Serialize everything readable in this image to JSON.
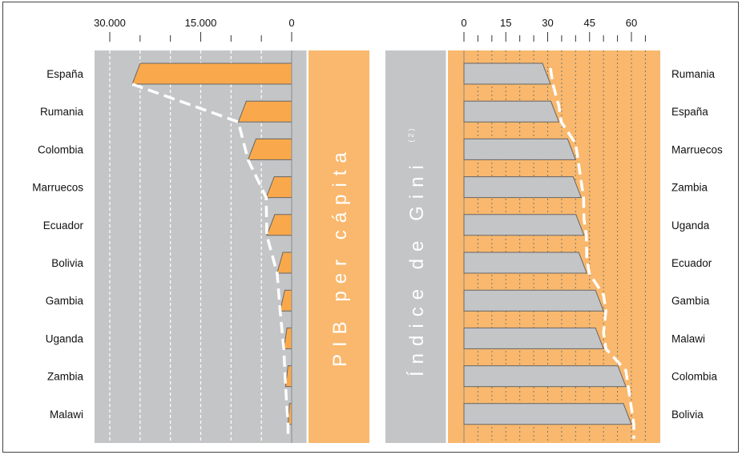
{
  "chart_data": [
    {
      "type": "bar",
      "orientation": "horizontal",
      "title": "PIB per cápita",
      "x_direction": "reversed",
      "xlim": [
        0,
        35000
      ],
      "x_ticks": [
        30000,
        15000,
        0
      ],
      "x_tick_labels": [
        "30.000",
        "15.000",
        "0"
      ],
      "categories": [
        "España",
        "Rumania",
        "Colombia",
        "Marruecos",
        "Ecuador",
        "Bolivia",
        "Gambia",
        "Uganda",
        "Zambia",
        "Malawi"
      ],
      "values": [
        26300,
        8800,
        7200,
        4200,
        4100,
        2400,
        1900,
        1300,
        1000,
        600
      ],
      "grid": true,
      "colors": {
        "bar": "#f9a94b",
        "panel": "#c4c5c7",
        "title_band": "#f9b86d",
        "outline": "#666666",
        "trend_line": "#ffffff"
      }
    },
    {
      "type": "bar",
      "orientation": "horizontal",
      "title": "Índice de Gini",
      "title_superscript": "(2)",
      "xlim": [
        0,
        70
      ],
      "x_ticks": [
        0,
        15,
        30,
        45,
        60
      ],
      "categories": [
        "Rumania",
        "España",
        "Marruecos",
        "Zambia",
        "Uganda",
        "Ecuador",
        "Gambia",
        "Malawi",
        "Colombia",
        "Bolivia"
      ],
      "values": [
        31,
        34,
        40,
        42,
        43,
        44,
        50,
        50,
        58,
        60
      ],
      "grid": true,
      "colors": {
        "bar": "#c4c5c7",
        "panel": "#f9b86d",
        "title_band": "#c4c5c7",
        "outline": "#666666",
        "trend_line": "#ffffff"
      }
    }
  ]
}
